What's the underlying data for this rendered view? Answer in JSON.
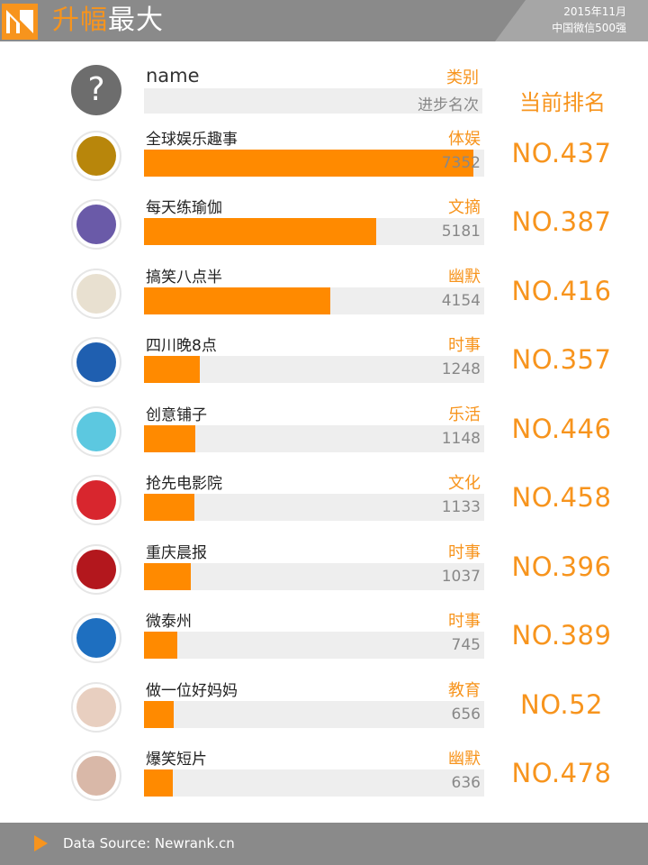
{
  "header": {
    "title_highlight": "升幅",
    "title_rest": "最大",
    "date": "2015年11月",
    "subtitle": "中国微信500强",
    "colors": {
      "bar": "#8a8a8a",
      "accent": "#f7941d"
    }
  },
  "legend": {
    "icon": "question-mark",
    "name_label": "name",
    "category_label": "类别",
    "progress_label": "进步名次",
    "rank_label": "当前排名"
  },
  "chart_data": {
    "type": "bar",
    "orientation": "horizontal",
    "categories": [
      "全球娱乐趣事",
      "每天练瑜伽",
      "搞笑八点半",
      "四川晚8点",
      "创意铺子",
      "抢先电影院",
      "重庆晨报",
      "微泰州",
      "做一位好妈妈",
      "爆笑短片"
    ],
    "values": [
      7352,
      5181,
      4154,
      1248,
      1148,
      1133,
      1037,
      745,
      656,
      636
    ],
    "value_label": "进步名次",
    "xlim": [
      0,
      7600
    ],
    "bar_color": "#ff8a00",
    "track_color": "#eeeeee"
  },
  "rows": [
    {
      "name": "全球娱乐趣事",
      "category": "体娱",
      "value": "7352",
      "rank": "NO.437",
      "icon": "avatar-icon"
    },
    {
      "name": "每天练瑜伽",
      "category": "文摘",
      "value": "5181",
      "rank": "NO.387",
      "icon": "avatar-icon"
    },
    {
      "name": "搞笑八点半",
      "category": "幽默",
      "value": "4154",
      "rank": "NO.416",
      "icon": "avatar-icon"
    },
    {
      "name": "四川晚8点",
      "category": "时事",
      "value": "1248",
      "rank": "NO.357",
      "icon": "avatar-icon"
    },
    {
      "name": "创意铺子",
      "category": "乐活",
      "value": "1148",
      "rank": "NO.446",
      "icon": "avatar-icon"
    },
    {
      "name": "抢先电影院",
      "category": "文化",
      "value": "1133",
      "rank": "NO.458",
      "icon": "avatar-icon"
    },
    {
      "name": "重庆晨报",
      "category": "时事",
      "value": "1037",
      "rank": "NO.396",
      "icon": "avatar-icon"
    },
    {
      "name": "微泰州",
      "category": "时事",
      "value": "745",
      "rank": "NO.389",
      "icon": "avatar-icon"
    },
    {
      "name": "做一位好妈妈",
      "category": "教育",
      "value": "656",
      "rank": "NO.52",
      "icon": "avatar-icon"
    },
    {
      "name": "爆笑短片",
      "category": "幽默",
      "value": "636",
      "rank": "NO.478",
      "icon": "avatar-icon"
    }
  ],
  "footer": {
    "icon": "play-icon",
    "source": "Data Source: Newrank.cn"
  }
}
